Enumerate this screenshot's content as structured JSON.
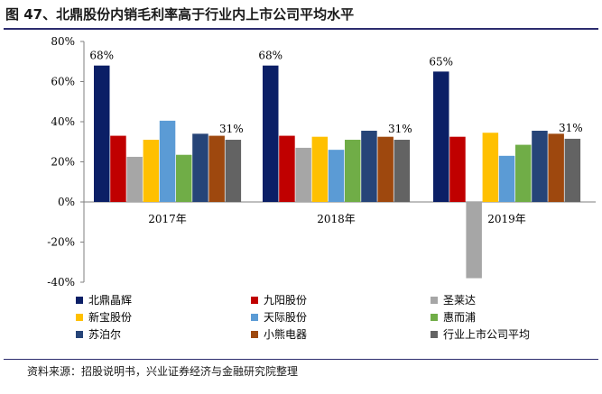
{
  "title": "图 47、北鼎股份内销毛利率高于行业内上市公司平均水平",
  "source": "资料来源：招股说明书，兴业证券经济与金融研究院整理",
  "chart_data": {
    "type": "bar",
    "categories": [
      "2017年",
      "2018年",
      "2019年"
    ],
    "ylim": [
      -40,
      80
    ],
    "yticks": [
      "80%",
      "60%",
      "40%",
      "20%",
      "0%",
      "-20%",
      "-40%"
    ],
    "ytick_values": [
      80,
      60,
      40,
      20,
      0,
      -20,
      -40
    ],
    "grid": false,
    "legend_position": "bottom",
    "series": [
      {
        "name": "北鼎晶辉",
        "color": "#0b1f66",
        "values": [
          68,
          68,
          65
        ]
      },
      {
        "name": "九阳股份",
        "color": "#c00000",
        "values": [
          33,
          33,
          32.5
        ]
      },
      {
        "name": "圣莱达",
        "color": "#a6a6a6",
        "values": [
          22.5,
          27,
          -38
        ]
      },
      {
        "name": "新宝股份",
        "color": "#ffc000",
        "values": [
          31,
          32.5,
          34.5
        ]
      },
      {
        "name": "天际股份",
        "color": "#5b9bd5",
        "values": [
          40.5,
          26,
          23
        ]
      },
      {
        "name": "惠而浦",
        "color": "#70ad47",
        "values": [
          23.5,
          31,
          28.5
        ]
      },
      {
        "name": "苏泊尔",
        "color": "#264478",
        "values": [
          34,
          35.5,
          35.5
        ]
      },
      {
        "name": "小熊电器",
        "color": "#9e480e",
        "values": [
          33,
          32.5,
          34
        ]
      },
      {
        "name": "行业上市公司平均",
        "color": "#636363",
        "values": [
          31,
          31,
          31.5
        ]
      }
    ],
    "annotations": [
      "68%",
      "31%",
      "68%",
      "31%",
      "65%",
      "31%"
    ]
  }
}
